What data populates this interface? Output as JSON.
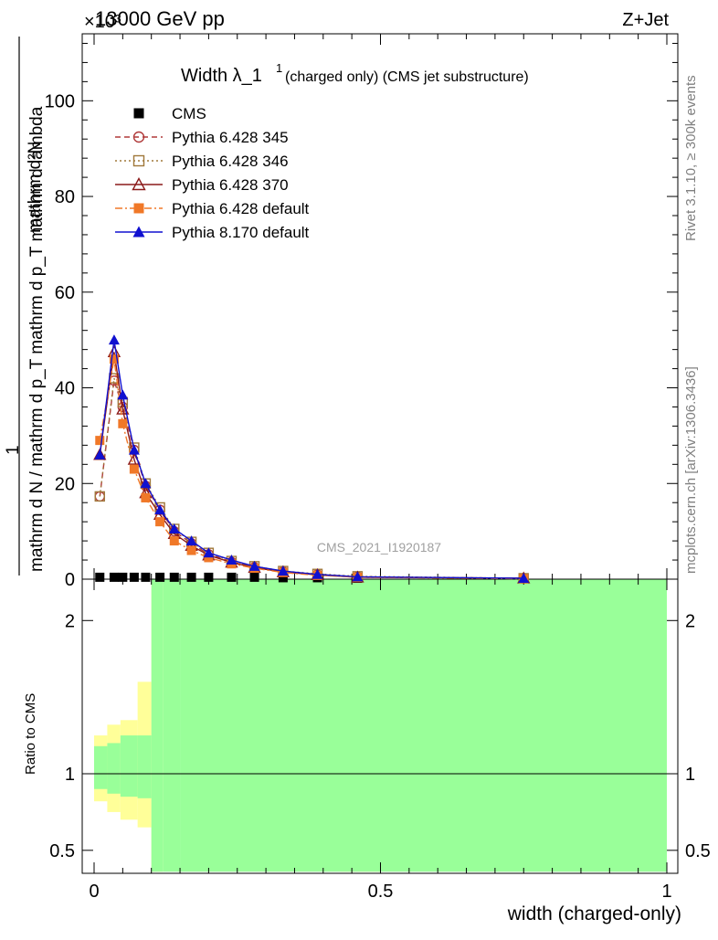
{
  "header": {
    "left": "13000 GeV pp",
    "right": "Z+Jet",
    "exponent": "×10³"
  },
  "title": {
    "main": "Width λ_1",
    "sup": "1",
    "sub": "(charged only) (CMS jet substructure)"
  },
  "side_labels": {
    "rivet": "Rivet 3.1.10, ≥ 300k events",
    "mcplots": "mcplots.cern.ch [arXiv:1306.3436]"
  },
  "watermark": "CMS_2021_I1920187",
  "ylabel_main": {
    "numerator": "mathrm d²N",
    "denominator": "mathrm d N / mathrm d p_T mathrm d p_T mathrm d lambda",
    "prefix": "1"
  },
  "ylabel_ratio": "Ratio to CMS",
  "xlabel": "width (charged-only)",
  "legend": [
    {
      "label": "CMS",
      "color": "#000000",
      "marker": "square-filled",
      "line": "none"
    },
    {
      "label": "Pythia 6.428 345",
      "color": "#b03a3a",
      "marker": "circle-open",
      "line": "dashed"
    },
    {
      "label": "Pythia 6.428 346",
      "color": "#a0783a",
      "marker": "square-open",
      "line": "dotted"
    },
    {
      "label": "Pythia 6.428 370",
      "color": "#8b1a1a",
      "marker": "triangle-open",
      "line": "solid"
    },
    {
      "label": "Pythia 6.428 default",
      "color": "#f07828",
      "marker": "square-filled",
      "line": "dashdot"
    },
    {
      "label": "Pythia 8.170 default",
      "color": "#1010d0",
      "marker": "triangle-filled",
      "line": "solid"
    }
  ],
  "chart_data": [
    {
      "type": "line",
      "panel": "main",
      "xlim": [
        0,
        1
      ],
      "ylim": [
        0,
        114
      ],
      "y_scale_note": "×10³",
      "x_ticks": [
        "0",
        "0.5",
        "1"
      ],
      "y_ticks": [
        0,
        20,
        40,
        60,
        80,
        100
      ],
      "x": [
        0.01,
        0.035,
        0.05,
        0.07,
        0.09,
        0.115,
        0.14,
        0.17,
        0.2,
        0.24,
        0.28,
        0.33,
        0.39,
        0.46,
        0.75
      ],
      "series": [
        {
          "name": "CMS",
          "values": [
            0.4,
            0.4,
            0.4,
            0.4,
            0.4,
            0.4,
            0.4,
            0.4,
            0.4,
            0.4,
            0.4,
            0.3,
            0.3,
            0.2,
            0.1
          ]
        },
        {
          "name": "Pythia 6.428 345",
          "values": [
            17.3,
            41.5,
            36.0,
            27.0,
            19.5,
            14.5,
            10.0,
            7.5,
            5.2,
            3.6,
            2.5,
            1.6,
            1.0,
            0.5,
            0.2
          ]
        },
        {
          "name": "Pythia 6.428 346",
          "values": [
            17.3,
            42.0,
            37.0,
            27.5,
            20.0,
            15.0,
            10.5,
            7.8,
            5.5,
            3.8,
            2.7,
            1.7,
            1.1,
            0.6,
            0.2
          ]
        },
        {
          "name": "Pythia 6.428 370",
          "values": [
            26.0,
            47.5,
            35.5,
            25.0,
            18.0,
            13.5,
            9.5,
            7.0,
            5.0,
            3.5,
            2.4,
            1.5,
            0.9,
            0.4,
            0.2
          ]
        },
        {
          "name": "Pythia 6.428 default",
          "values": [
            29.0,
            46.0,
            32.5,
            23.0,
            17.0,
            12.0,
            8.0,
            6.0,
            4.5,
            3.2,
            2.3,
            1.4,
            0.8,
            0.4,
            0.1
          ]
        },
        {
          "name": "Pythia 8.170 default",
          "values": [
            26.0,
            50.0,
            38.5,
            27.0,
            20.0,
            14.5,
            10.5,
            8.0,
            5.5,
            4.0,
            2.7,
            1.7,
            1.0,
            0.5,
            0.2
          ]
        }
      ]
    },
    {
      "type": "area",
      "panel": "ratio",
      "xlim": [
        0,
        1
      ],
      "ylim": [
        0.35,
        2.27
      ],
      "y_ticks": [
        0.5,
        1,
        2
      ],
      "x_ticks": [
        "0",
        "0.5",
        "1"
      ],
      "reference_line": 1,
      "bands": [
        {
          "name": "stat+syst",
          "color": "#99ff99",
          "bins": [
            {
              "x": [
                0.0,
                0.023
              ],
              "lo": 0.9,
              "hi": 1.18
            },
            {
              "x": [
                0.023,
                0.046
              ],
              "lo": 0.87,
              "hi": 1.2
            },
            {
              "x": [
                0.046,
                0.076
              ],
              "lo": 0.85,
              "hi": 1.25
            },
            {
              "x": [
                0.076,
                0.1
              ],
              "lo": 0.84,
              "hi": 1.25
            },
            {
              "x": [
                0.1,
                0.12
              ],
              "lo": 0.36,
              "hi": 2.27
            },
            {
              "x": [
                0.12,
                0.15
              ],
              "lo": 0.36,
              "hi": 2.27
            },
            {
              "x": [
                0.15,
                0.5
              ],
              "lo": 0.36,
              "hi": 2.27
            },
            {
              "x": [
                0.5,
                1.0
              ],
              "lo": 0.36,
              "hi": 2.27
            }
          ]
        },
        {
          "name": "total",
          "color": "#ffff99",
          "bins": [
            {
              "x": [
                0.0,
                0.023
              ],
              "lo": 0.82,
              "hi": 1.25
            },
            {
              "x": [
                0.023,
                0.046
              ],
              "lo": 0.75,
              "hi": 1.32
            },
            {
              "x": [
                0.046,
                0.076
              ],
              "lo": 0.7,
              "hi": 1.35
            },
            {
              "x": [
                0.076,
                0.1
              ],
              "lo": 0.65,
              "hi": 1.6
            },
            {
              "x": [
                0.1,
                0.12
              ],
              "lo": 0.36,
              "hi": 2.27
            },
            {
              "x": [
                0.43,
                0.5
              ],
              "lo": 0.36,
              "hi": 2.27
            }
          ]
        }
      ]
    }
  ]
}
